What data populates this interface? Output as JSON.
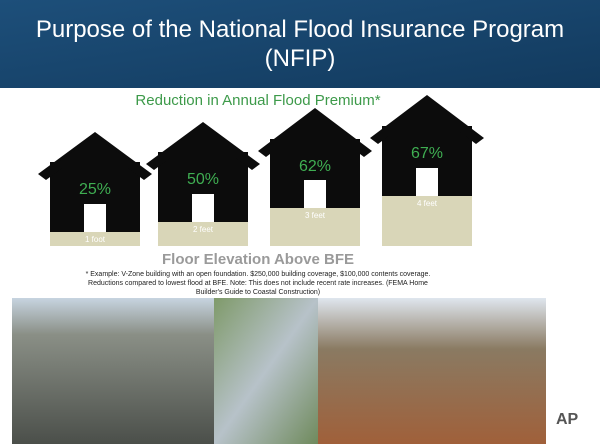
{
  "title": "Purpose of the National Flood Insurance Program (NFIP)",
  "infographic": {
    "heading": "Reduction in Annual Flood Premium*",
    "houses": [
      {
        "percent": "25%",
        "elevation": "1 foot"
      },
      {
        "percent": "50%",
        "elevation": "2 feet"
      },
      {
        "percent": "62%",
        "elevation": "3 feet"
      },
      {
        "percent": "67%",
        "elevation": "4 feet"
      }
    ],
    "axis_label": "Floor Elevation Above BFE",
    "footnote": [
      "* Example: V-Zone building with an open foundation. $250,000 building coverage, $100,000 contents coverage.",
      "Reductions compared to lowest flood at BFE. Note: This does not include recent rate increases. (FEMA Home",
      "Builder's Guide to Coastal Construction)"
    ]
  },
  "logo_text": "AP"
}
